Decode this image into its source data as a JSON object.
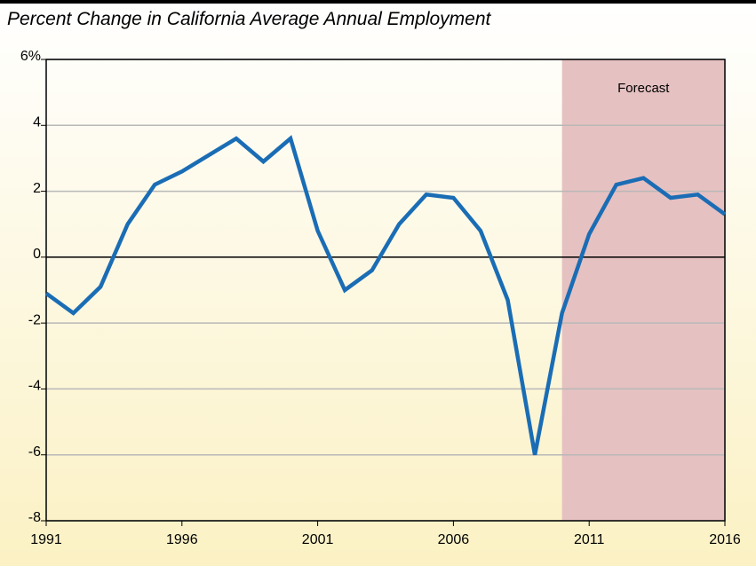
{
  "chart_data": {
    "type": "line",
    "title": "Percent Change in California Average Annual Employment",
    "x": [
      1991,
      1992,
      1993,
      1994,
      1995,
      1996,
      1997,
      1998,
      1999,
      2000,
      2001,
      2002,
      2003,
      2004,
      2005,
      2006,
      2007,
      2008,
      2009,
      2010,
      2011,
      2012,
      2013,
      2014,
      2015,
      2016
    ],
    "series": [
      {
        "color": "#1a6db5",
        "values": [
          -1.1,
          -1.7,
          -0.9,
          1.0,
          2.2,
          2.6,
          3.1,
          3.6,
          2.9,
          3.6,
          0.8,
          -1.0,
          -0.4,
          1.0,
          1.9,
          1.8,
          0.8,
          -1.3,
          -6.0,
          -1.7,
          0.7,
          2.2,
          2.4,
          1.8,
          1.9,
          1.3
        ]
      }
    ],
    "xlim": [
      1991,
      2016
    ],
    "xticks": [
      1991,
      1996,
      2001,
      2006,
      2011,
      2016
    ],
    "ylim": [
      -8,
      6
    ],
    "yticks": [
      {
        "value": 6,
        "label": "6%"
      },
      4,
      2,
      0,
      -2,
      -4,
      -6,
      -8
    ],
    "grid": true,
    "forecast": {
      "label": "Forecast",
      "x": [
        2010,
        2016
      ],
      "color": "#e6c1c1"
    }
  }
}
